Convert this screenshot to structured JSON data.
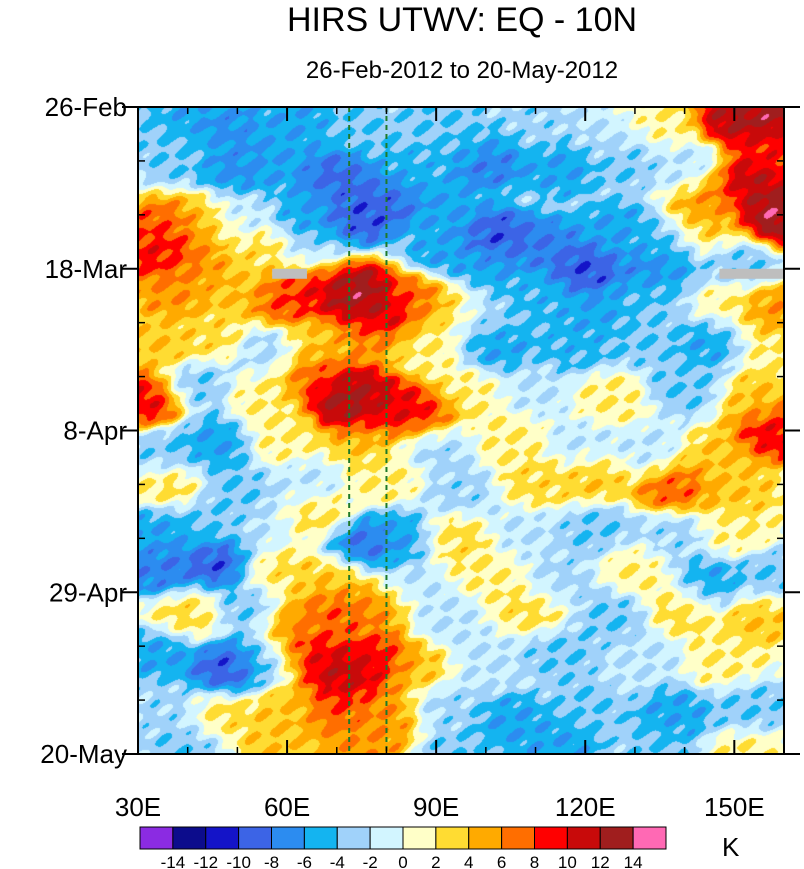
{
  "chart_data": {
    "type": "heatmap",
    "title": "HIRS UTWV: EQ - 10N",
    "subtitle": "26-Feb-2012 to 20-May-2012",
    "xlabel": "",
    "ylabel": "",
    "xlim": [
      30,
      160
    ],
    "ylim_days": [
      0,
      84
    ],
    "x_ticks": [
      {
        "value": 30,
        "label": "30E"
      },
      {
        "value": 60,
        "label": "60E"
      },
      {
        "value": 90,
        "label": "90E"
      },
      {
        "value": 120,
        "label": "120E"
      },
      {
        "value": 150,
        "label": "150E"
      }
    ],
    "y_ticks": [
      {
        "day": 0,
        "label": "26-Feb"
      },
      {
        "day": 21,
        "label": "18-Mar"
      },
      {
        "day": 42,
        "label": "8-Apr"
      },
      {
        "day": 63,
        "label": "29-Apr"
      },
      {
        "day": 84,
        "label": "20-May"
      }
    ],
    "reference_lines_lon": [
      72.5,
      80
    ],
    "missing_data": [
      {
        "lon": [
          57,
          64
        ],
        "day": [
          21,
          22.3
        ]
      },
      {
        "lon": [
          147,
          160
        ],
        "day": [
          21,
          22.3
        ]
      }
    ],
    "colorbar": {
      "unit": "K",
      "levels": [
        -14,
        -12,
        -10,
        -8,
        -6,
        -4,
        -2,
        0,
        2,
        4,
        6,
        8,
        10,
        12,
        14
      ],
      "labels": [
        "-14",
        "-12",
        "-10",
        "-8",
        "-6",
        "-4",
        "-2",
        "0",
        "2",
        "4",
        "6",
        "8",
        "10",
        "12",
        "14"
      ],
      "colors": [
        "#8B2BE2",
        "#0C0C8C",
        "#1414C8",
        "#3C64E6",
        "#2C8CF0",
        "#14B4F0",
        "#A0D2FA",
        "#D2F5FF",
        "#FFFFC8",
        "#FFDC32",
        "#FFAA00",
        "#FF6E00",
        "#FF0000",
        "#C80A0A",
        "#A01E1E",
        "#FF69B4"
      ]
    },
    "anomaly_features": [
      {
        "lon": 31,
        "day": 2,
        "value": -3.5
      },
      {
        "lon": 38,
        "day": 1,
        "value": -6
      },
      {
        "lon": 48,
        "day": 3,
        "value": -7
      },
      {
        "lon": 62,
        "day": 2,
        "value": -6
      },
      {
        "lon": 75,
        "day": 3,
        "value": -4
      },
      {
        "lon": 90,
        "day": 1,
        "value": -4
      },
      {
        "lon": 96,
        "day": 4,
        "value": -4
      },
      {
        "lon": 110,
        "day": 2,
        "value": -3
      },
      {
        "lon": 125,
        "day": 4,
        "value": -2
      },
      {
        "lon": 135,
        "day": 2,
        "value": 2
      },
      {
        "lon": 150,
        "day": 1,
        "value": 12
      },
      {
        "lon": 156,
        "day": 1,
        "value": 14
      },
      {
        "lon": 158,
        "day": 5,
        "value": 9
      },
      {
        "lon": 38,
        "day": 6,
        "value": -4
      },
      {
        "lon": 50,
        "day": 8,
        "value": -7
      },
      {
        "lon": 58,
        "day": 7,
        "value": -6
      },
      {
        "lon": 70,
        "day": 9,
        "value": -9
      },
      {
        "lon": 85,
        "day": 8,
        "value": -5
      },
      {
        "lon": 100,
        "day": 7,
        "value": -8
      },
      {
        "lon": 115,
        "day": 8,
        "value": -6
      },
      {
        "lon": 128,
        "day": 7,
        "value": -4
      },
      {
        "lon": 140,
        "day": 8,
        "value": -2
      },
      {
        "lon": 153,
        "day": 10,
        "value": 12
      },
      {
        "lon": 158,
        "day": 14,
        "value": 14
      },
      {
        "lon": 145,
        "day": 12,
        "value": 6
      },
      {
        "lon": 35,
        "day": 16,
        "value": 8
      },
      {
        "lon": 43,
        "day": 15,
        "value": 5
      },
      {
        "lon": 50,
        "day": 14,
        "value": -2
      },
      {
        "lon": 65,
        "day": 14,
        "value": -6
      },
      {
        "lon": 74,
        "day": 14,
        "value": -10
      },
      {
        "lon": 80,
        "day": 12,
        "value": -9
      },
      {
        "lon": 92,
        "day": 13,
        "value": -6
      },
      {
        "lon": 102,
        "day": 17,
        "value": -10
      },
      {
        "lon": 112,
        "day": 18,
        "value": -8
      },
      {
        "lon": 126,
        "day": 16,
        "value": -6
      },
      {
        "lon": 136,
        "day": 18,
        "value": -4
      },
      {
        "lon": 145,
        "day": 16,
        "value": 4
      },
      {
        "lon": 35,
        "day": 19,
        "value": 10
      },
      {
        "lon": 42,
        "day": 21,
        "value": 6
      },
      {
        "lon": 55,
        "day": 19,
        "value": 3
      },
      {
        "lon": 65,
        "day": 19,
        "value": -3
      },
      {
        "lon": 92,
        "day": 19,
        "value": -6
      },
      {
        "lon": 100,
        "day": 21,
        "value": -6
      },
      {
        "lon": 120,
        "day": 21,
        "value": -10
      },
      {
        "lon": 134,
        "day": 21,
        "value": -8
      },
      {
        "lon": 150,
        "day": 20,
        "value": -4
      },
      {
        "lon": 37,
        "day": 24,
        "value": 6
      },
      {
        "lon": 48,
        "day": 24,
        "value": 4
      },
      {
        "lon": 60,
        "day": 25,
        "value": 8
      },
      {
        "lon": 66,
        "day": 23,
        "value": 10
      },
      {
        "lon": 73,
        "day": 24,
        "value": 14
      },
      {
        "lon": 78,
        "day": 27,
        "value": 12
      },
      {
        "lon": 86,
        "day": 25,
        "value": 8
      },
      {
        "lon": 93,
        "day": 26,
        "value": 3
      },
      {
        "lon": 100,
        "day": 27,
        "value": -3
      },
      {
        "lon": 110,
        "day": 25,
        "value": -5
      },
      {
        "lon": 122,
        "day": 27,
        "value": -6
      },
      {
        "lon": 135,
        "day": 24,
        "value": -4
      },
      {
        "lon": 148,
        "day": 26,
        "value": 2
      },
      {
        "lon": 157,
        "day": 27,
        "value": 6
      },
      {
        "lon": 35,
        "day": 31,
        "value": 4
      },
      {
        "lon": 45,
        "day": 30,
        "value": 3
      },
      {
        "lon": 56,
        "day": 32,
        "value": -3
      },
      {
        "lon": 66,
        "day": 31,
        "value": 4
      },
      {
        "lon": 76,
        "day": 30,
        "value": 6
      },
      {
        "lon": 88,
        "day": 31,
        "value": 2
      },
      {
        "lon": 102,
        "day": 31,
        "value": -6
      },
      {
        "lon": 118,
        "day": 31,
        "value": -5
      },
      {
        "lon": 130,
        "day": 30,
        "value": -4
      },
      {
        "lon": 146,
        "day": 30,
        "value": -6
      },
      {
        "lon": 157,
        "day": 31,
        "value": 2
      },
      {
        "lon": 32,
        "day": 38,
        "value": 10
      },
      {
        "lon": 42,
        "day": 36,
        "value": -4
      },
      {
        "lon": 55,
        "day": 37,
        "value": 2
      },
      {
        "lon": 65,
        "day": 35,
        "value": 8
      },
      {
        "lon": 73,
        "day": 37,
        "value": 12
      },
      {
        "lon": 80,
        "day": 39,
        "value": 10
      },
      {
        "lon": 87,
        "day": 40,
        "value": 10
      },
      {
        "lon": 96,
        "day": 37,
        "value": 2
      },
      {
        "lon": 110,
        "day": 37,
        "value": -2
      },
      {
        "lon": 125,
        "day": 38,
        "value": 2
      },
      {
        "lon": 140,
        "day": 36,
        "value": -4
      },
      {
        "lon": 155,
        "day": 38,
        "value": 4
      },
      {
        "lon": 158,
        "day": 42,
        "value": 10
      },
      {
        "lon": 73,
        "day": 39,
        "value": 14
      },
      {
        "lon": 35,
        "day": 45,
        "value": -4
      },
      {
        "lon": 45,
        "day": 44,
        "value": -6
      },
      {
        "lon": 60,
        "day": 43,
        "value": 2
      },
      {
        "lon": 75,
        "day": 43,
        "value": 4
      },
      {
        "lon": 90,
        "day": 44,
        "value": -3
      },
      {
        "lon": 105,
        "day": 43,
        "value": 2
      },
      {
        "lon": 120,
        "day": 44,
        "value": -2
      },
      {
        "lon": 133,
        "day": 45,
        "value": -2
      },
      {
        "lon": 146,
        "day": 46,
        "value": 4
      },
      {
        "lon": 36,
        "day": 49,
        "value": 3
      },
      {
        "lon": 50,
        "day": 50,
        "value": -4
      },
      {
        "lon": 64,
        "day": 49,
        "value": -2
      },
      {
        "lon": 80,
        "day": 48,
        "value": 2
      },
      {
        "lon": 95,
        "day": 50,
        "value": -3
      },
      {
        "lon": 110,
        "day": 49,
        "value": 3
      },
      {
        "lon": 122,
        "day": 48,
        "value": 4
      },
      {
        "lon": 138,
        "day": 49,
        "value": 8
      },
      {
        "lon": 150,
        "day": 50,
        "value": 4
      },
      {
        "lon": 34,
        "day": 55,
        "value": -6
      },
      {
        "lon": 45,
        "day": 54,
        "value": -4
      },
      {
        "lon": 55,
        "day": 55,
        "value": -2
      },
      {
        "lon": 66,
        "day": 53,
        "value": 3
      },
      {
        "lon": 75,
        "day": 57,
        "value": -9
      },
      {
        "lon": 83,
        "day": 56,
        "value": -6
      },
      {
        "lon": 94,
        "day": 56,
        "value": 3
      },
      {
        "lon": 108,
        "day": 55,
        "value": -2
      },
      {
        "lon": 122,
        "day": 55,
        "value": -4
      },
      {
        "lon": 138,
        "day": 56,
        "value": -3
      },
      {
        "lon": 150,
        "day": 55,
        "value": 2
      },
      {
        "lon": 35,
        "day": 60,
        "value": -8
      },
      {
        "lon": 47,
        "day": 59,
        "value": -10
      },
      {
        "lon": 57,
        "day": 60,
        "value": 3
      },
      {
        "lon": 70,
        "day": 61,
        "value": 4
      },
      {
        "lon": 85,
        "day": 62,
        "value": -2
      },
      {
        "lon": 100,
        "day": 61,
        "value": 2
      },
      {
        "lon": 115,
        "day": 62,
        "value": -3
      },
      {
        "lon": 130,
        "day": 60,
        "value": 2
      },
      {
        "lon": 145,
        "day": 62,
        "value": -6
      },
      {
        "lon": 157,
        "day": 61,
        "value": -4
      },
      {
        "lon": 40,
        "day": 66,
        "value": 3
      },
      {
        "lon": 52,
        "day": 65,
        "value": -4
      },
      {
        "lon": 62,
        "day": 67,
        "value": 6
      },
      {
        "lon": 70,
        "day": 66,
        "value": 8
      },
      {
        "lon": 78,
        "day": 65,
        "value": 6
      },
      {
        "lon": 92,
        "day": 66,
        "value": -2
      },
      {
        "lon": 110,
        "day": 65,
        "value": 3
      },
      {
        "lon": 125,
        "day": 66,
        "value": -4
      },
      {
        "lon": 140,
        "day": 65,
        "value": 3
      },
      {
        "lon": 155,
        "day": 66,
        "value": 4
      },
      {
        "lon": 35,
        "day": 71,
        "value": -6
      },
      {
        "lon": 48,
        "day": 73,
        "value": -10
      },
      {
        "lon": 56,
        "day": 72,
        "value": -4
      },
      {
        "lon": 64,
        "day": 71,
        "value": 10
      },
      {
        "lon": 71,
        "day": 74,
        "value": 12
      },
      {
        "lon": 78,
        "day": 72,
        "value": 10
      },
      {
        "lon": 86,
        "day": 73,
        "value": 4
      },
      {
        "lon": 100,
        "day": 72,
        "value": -2
      },
      {
        "lon": 115,
        "day": 71,
        "value": -4
      },
      {
        "lon": 132,
        "day": 72,
        "value": -2
      },
      {
        "lon": 148,
        "day": 72,
        "value": 2
      },
      {
        "lon": 36,
        "day": 78,
        "value": -3
      },
      {
        "lon": 47,
        "day": 79,
        "value": 3
      },
      {
        "lon": 60,
        "day": 78,
        "value": 4
      },
      {
        "lon": 70,
        "day": 78,
        "value": 8
      },
      {
        "lon": 80,
        "day": 79,
        "value": 6
      },
      {
        "lon": 92,
        "day": 78,
        "value": -3
      },
      {
        "lon": 105,
        "day": 80,
        "value": -6
      },
      {
        "lon": 120,
        "day": 78,
        "value": -4
      },
      {
        "lon": 138,
        "day": 79,
        "value": -6
      },
      {
        "lon": 153,
        "day": 78,
        "value": -4
      },
      {
        "lon": 40,
        "day": 83,
        "value": -4
      },
      {
        "lon": 58,
        "day": 83,
        "value": 4
      },
      {
        "lon": 75,
        "day": 83,
        "value": 6
      },
      {
        "lon": 95,
        "day": 84,
        "value": -4
      },
      {
        "lon": 115,
        "day": 83,
        "value": -6
      },
      {
        "lon": 135,
        "day": 83,
        "value": -4
      },
      {
        "lon": 152,
        "day": 84,
        "value": 2
      }
    ]
  }
}
